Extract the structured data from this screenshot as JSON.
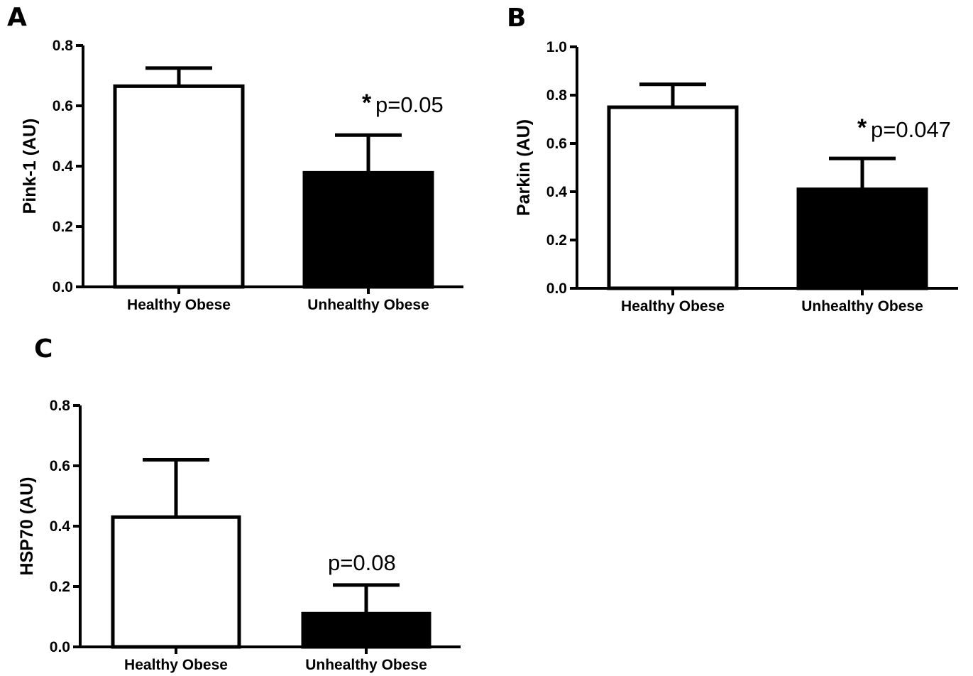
{
  "chart_data": [
    {
      "type": "bar",
      "panel_label": "A",
      "categories": [
        "Healthy Obese",
        "Unhealthy Obese"
      ],
      "values": [
        0.665,
        0.378
      ],
      "errors": [
        0.06,
        0.125
      ],
      "bar_colors": [
        "#ffffff",
        "#000000"
      ],
      "ylabel": "Pink-1 (AU)",
      "ylim": [
        0,
        0.8
      ],
      "yticks": [
        "0.0",
        "0.2",
        "0.4",
        "0.6",
        "0.8"
      ],
      "annotation": {
        "star": "*",
        "text": "p=0.05"
      }
    },
    {
      "type": "bar",
      "panel_label": "B",
      "categories": [
        "Healthy Obese",
        "Unhealthy Obese"
      ],
      "values": [
        0.75,
        0.41
      ],
      "errors": [
        0.095,
        0.128
      ],
      "bar_colors": [
        "#ffffff",
        "#000000"
      ],
      "ylabel": "Parkin (AU)",
      "ylim": [
        0,
        1.0
      ],
      "yticks": [
        "0.0",
        "0.2",
        "0.4",
        "0.6",
        "0.8",
        "1.0"
      ],
      "annotation": {
        "star": "*",
        "text": "p=0.047"
      }
    },
    {
      "type": "bar",
      "panel_label": "C",
      "categories": [
        "Healthy Obese",
        "Unhealthy Obese"
      ],
      "values": [
        0.43,
        0.11
      ],
      "errors": [
        0.19,
        0.095
      ],
      "bar_colors": [
        "#ffffff",
        "#000000"
      ],
      "ylabel": "HSP70 (AU)",
      "ylim": [
        0,
        0.8
      ],
      "yticks": [
        "0.0",
        "0.2",
        "0.4",
        "0.6",
        "0.8"
      ],
      "annotation": {
        "star": "",
        "text": "p=0.08"
      }
    }
  ]
}
